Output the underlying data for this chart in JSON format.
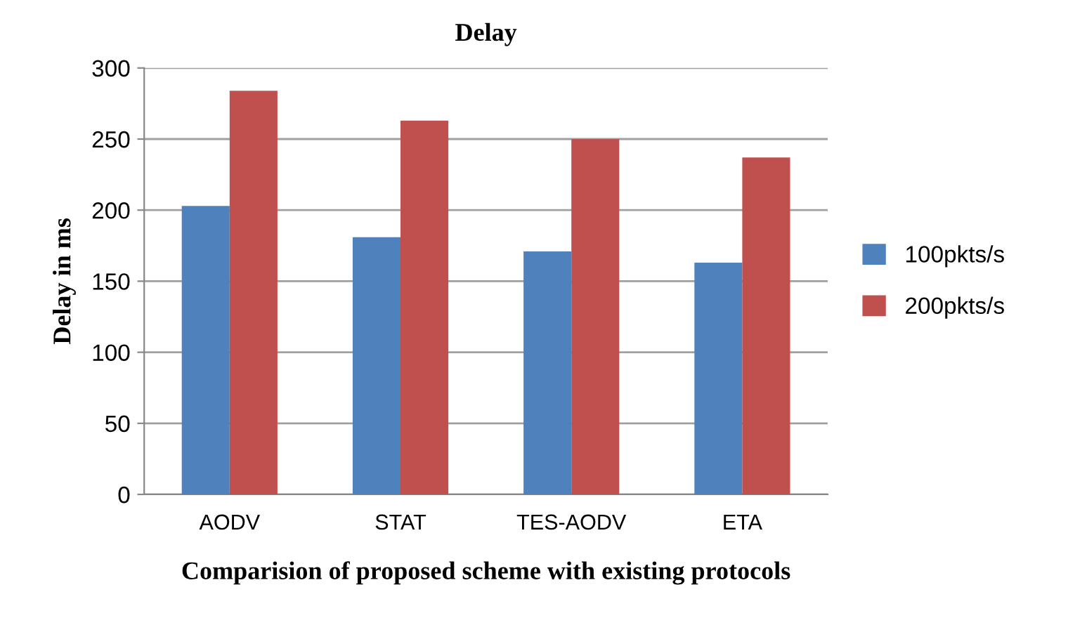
{
  "chart_data": {
    "type": "bar",
    "title": "Delay",
    "xlabel": "Comparision of proposed scheme with existing protocols",
    "ylabel": "Delay in ms",
    "categories": [
      "AODV",
      "STAT",
      "TES-AODV",
      "ETA"
    ],
    "series": [
      {
        "name": "100pkts/s",
        "color": "#4f81bd",
        "values": [
          203,
          181,
          171,
          163
        ]
      },
      {
        "name": "200pkts/s",
        "color": "#c0504d",
        "values": [
          284,
          263,
          250,
          237
        ]
      }
    ],
    "ylim": [
      0,
      300
    ],
    "yticks": [
      0,
      50,
      100,
      150,
      200,
      250,
      300
    ],
    "grid": "y",
    "legend": "right"
  }
}
